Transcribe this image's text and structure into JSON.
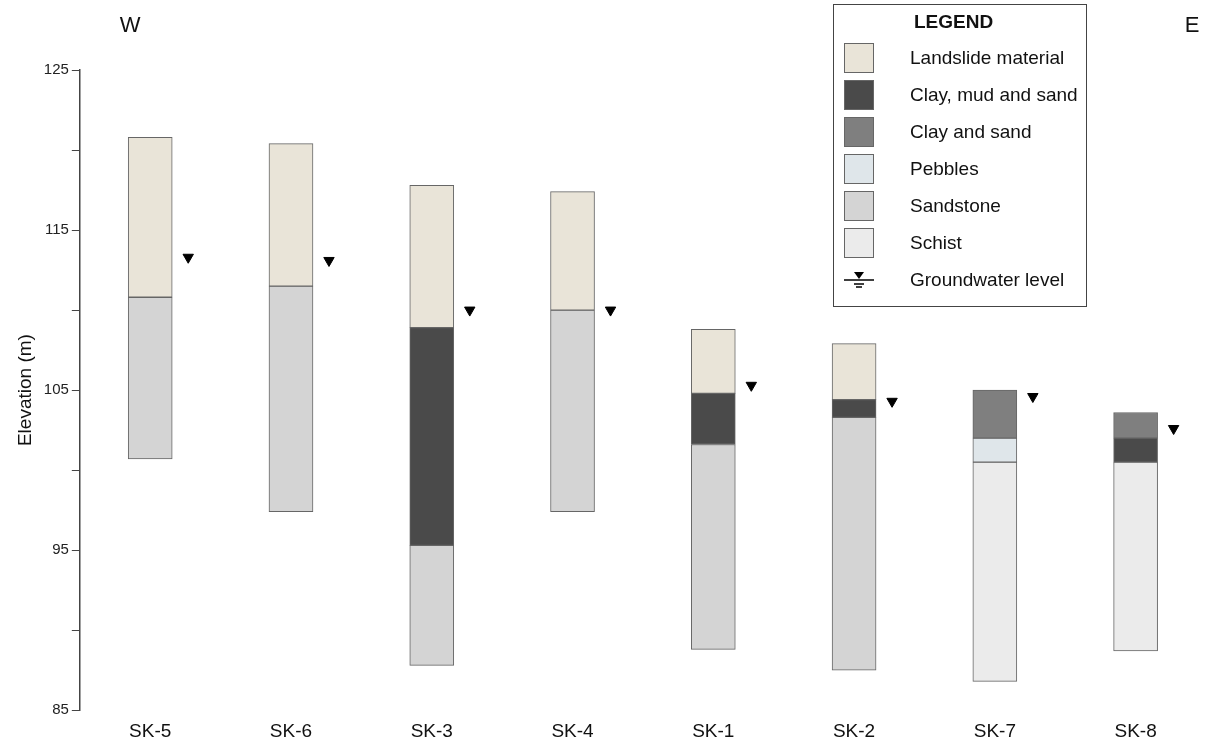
{
  "chart_data": {
    "type": "bar",
    "ylabel": "Elevation (m)",
    "legend_title": "LEGEND",
    "legend": "top right",
    "annotations": [
      "W",
      "E"
    ],
    "categories": [
      "SK-5",
      "SK-6",
      "SK-3",
      "SK-4",
      "SK-1",
      "SK-2",
      "SK-7",
      "SK-8"
    ],
    "ylim": [
      85,
      125
    ],
    "yticks": [
      85,
      {
        "value": 90,
        "label": null
      },
      95,
      {
        "value": 100,
        "label": null
      },
      105,
      {
        "value": 110,
        "label": null
      },
      115,
      {
        "value": 120,
        "label": null
      },
      125
    ],
    "grid": false,
    "series": [
      {
        "name": "Landslide material",
        "color": "#e9e4d8",
        "base": [
          110.8,
          111.5,
          108.9,
          110.0,
          104.8,
          104.4,
          null,
          null
        ],
        "values": [
          10.0,
          8.9,
          8.9,
          7.4,
          4.0,
          3.5,
          null,
          null
        ]
      },
      {
        "name": "Clay, mud and sand",
        "color": "#4a4a4a",
        "base": [
          null,
          null,
          95.3,
          null,
          101.6,
          103.3,
          null,
          100.5
        ],
        "values": [
          null,
          null,
          13.6,
          null,
          3.2,
          1.1,
          null,
          1.5
        ]
      },
      {
        "name": "Clay and sand",
        "color": "#7f7f7f",
        "base": [
          null,
          null,
          null,
          null,
          null,
          null,
          102.0,
          102.0
        ],
        "values": [
          null,
          null,
          null,
          null,
          null,
          null,
          3.0,
          1.6
        ]
      },
      {
        "name": "Pebbles",
        "color": "#dfe6ea",
        "base": [
          null,
          null,
          null,
          null,
          null,
          null,
          100.5,
          null
        ],
        "values": [
          null,
          null,
          null,
          null,
          null,
          null,
          1.5,
          null
        ]
      },
      {
        "name": "Sandstone",
        "color": "#d4d4d4",
        "base": [
          100.7,
          97.4,
          87.8,
          97.4,
          88.8,
          87.5,
          null,
          null
        ],
        "values": [
          10.1,
          14.1,
          7.5,
          12.6,
          12.8,
          15.8,
          null,
          null
        ]
      },
      {
        "name": "Schist",
        "color": "#ebebeb",
        "base": [
          null,
          null,
          null,
          null,
          null,
          null,
          86.8,
          88.7
        ],
        "values": [
          null,
          null,
          null,
          null,
          null,
          null,
          13.7,
          11.8
        ]
      },
      {
        "name": "Groundwater level",
        "type": "scatter",
        "marker": "triangle",
        "color": "#000000",
        "x": [
          "SK-5",
          "SK-6",
          "SK-3",
          "SK-4",
          "SK-1",
          "SK-2",
          "SK-7",
          "SK-8"
        ],
        "values": [
          113.3,
          113.1,
          110.0,
          110.0,
          105.3,
          104.3,
          104.6,
          102.6
        ]
      }
    ]
  }
}
